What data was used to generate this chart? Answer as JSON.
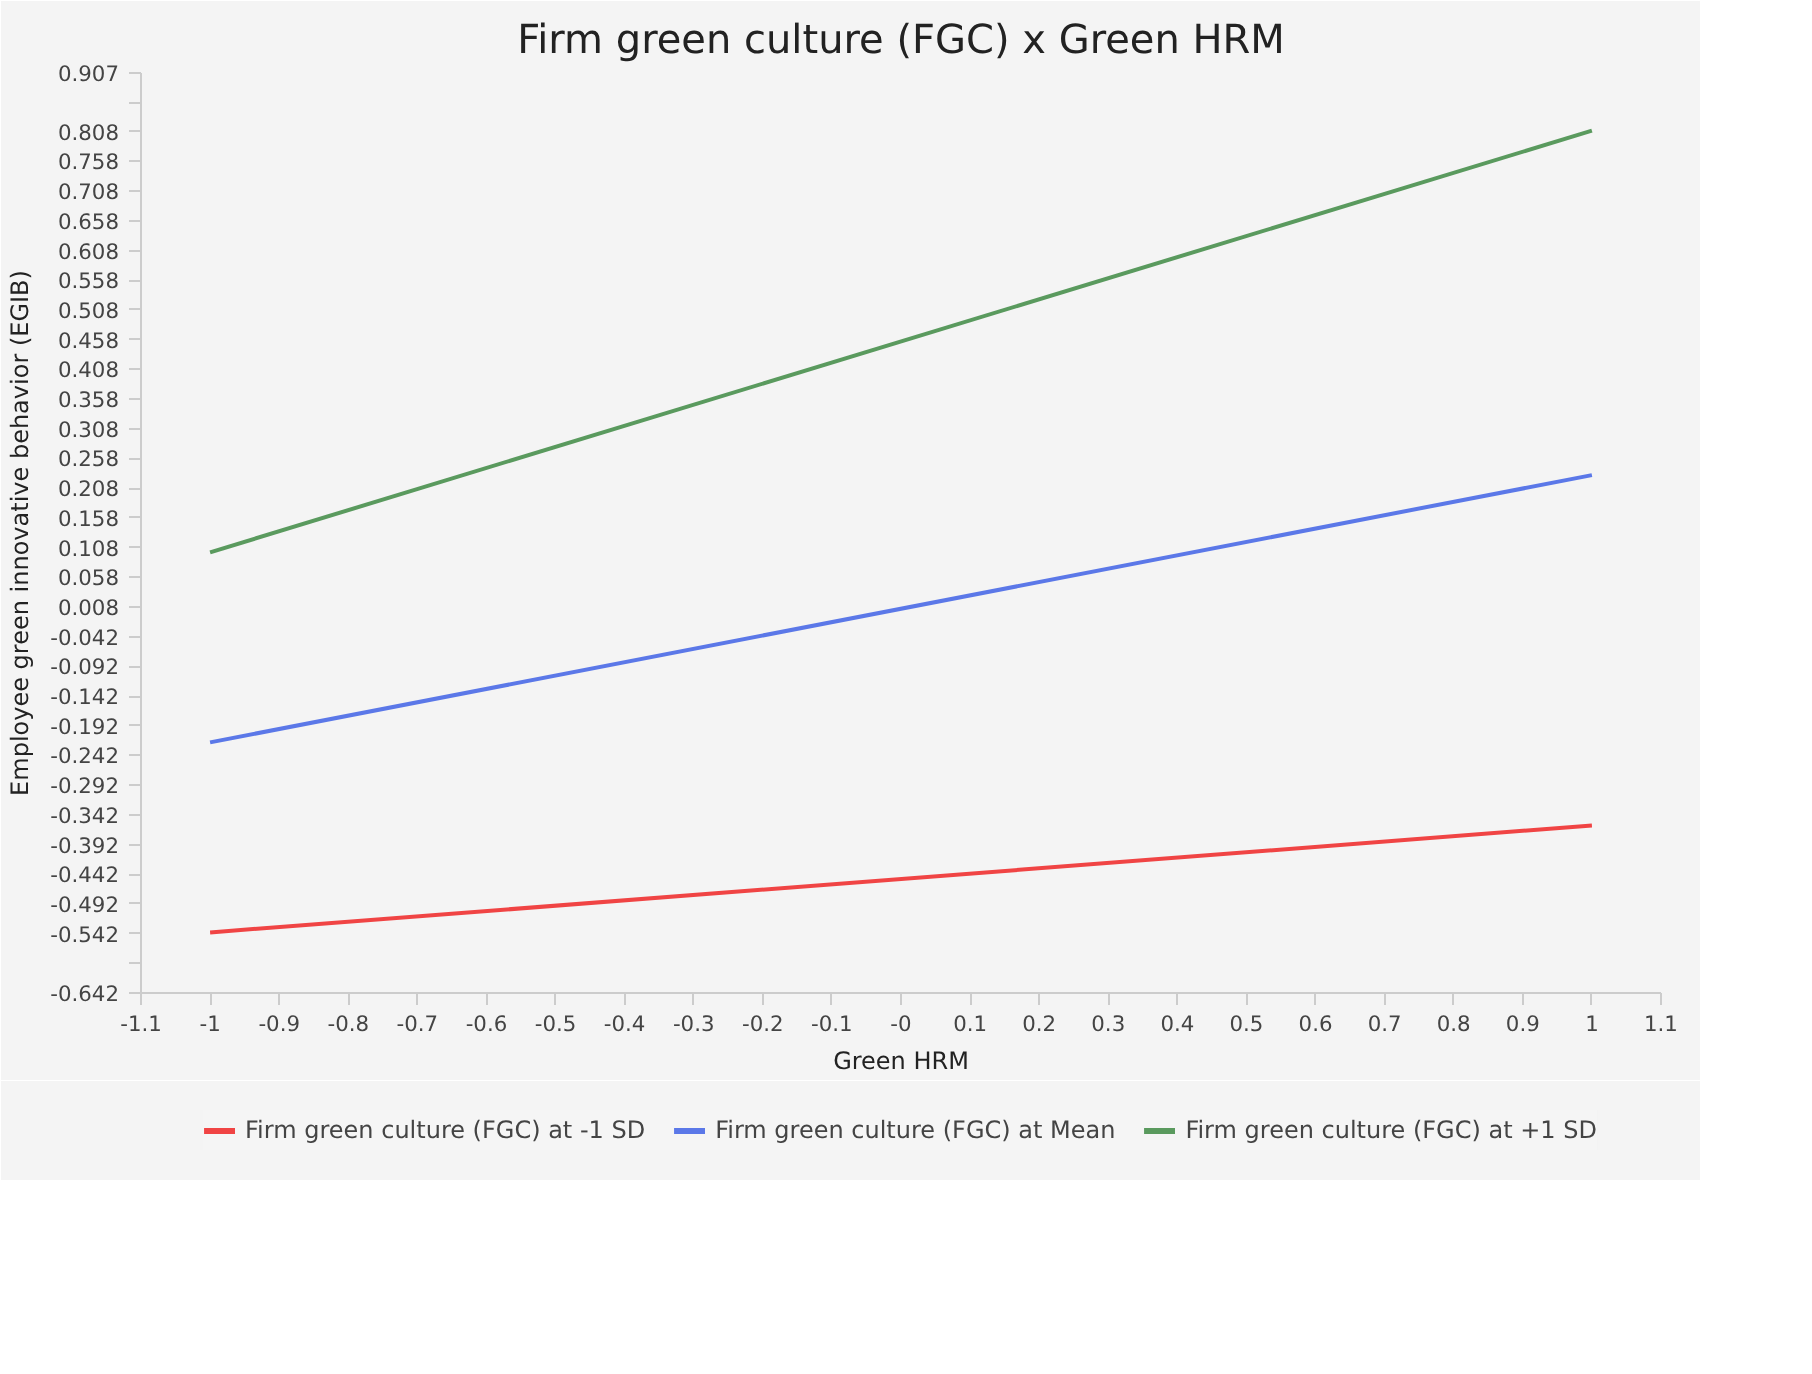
{
  "chart_data": {
    "type": "line",
    "title": "Firm green culture (FGC) x Green HRM",
    "xlabel": "Green HRM",
    "ylabel": "Employee green innovative behavior (EGIB)",
    "x": [
      -1,
      1
    ],
    "series": [
      {
        "name": "Firm green culture (FGC) at -1 SD",
        "color": "#f04444",
        "values": [
          -0.54,
          -0.36
        ]
      },
      {
        "name": "Firm green culture (FGC) at Mean",
        "color": "#5b78e8",
        "values": [
          -0.22,
          0.23
        ]
      },
      {
        "name": "Firm green culture (FGC) at +1 SD",
        "color": "#5a9a5e",
        "values": [
          0.1,
          0.81
        ]
      }
    ],
    "xlim": [
      -1.1,
      1.1
    ],
    "xticks": [
      -1.1,
      -1,
      -0.9,
      -0.8,
      -0.7,
      -0.6,
      -0.5,
      -0.4,
      -0.3,
      -0.2,
      -0.1,
      {
        "value": 0,
        "label": "-0"
      },
      0.1,
      0.2,
      0.3,
      0.4,
      0.5,
      0.6,
      0.7,
      0.8,
      0.9,
      1,
      1.1
    ],
    "ylim": [
      -0.642,
      0.907
    ],
    "yticks": [
      0.907,
      {
        "value": 0.858,
        "label": null
      },
      0.808,
      0.758,
      0.708,
      0.658,
      0.608,
      0.558,
      0.508,
      0.458,
      0.408,
      0.358,
      0.308,
      0.258,
      0.208,
      0.158,
      0.108,
      0.058,
      0.008,
      -0.042,
      -0.092,
      -0.142,
      -0.192,
      -0.242,
      -0.292,
      -0.342,
      -0.392,
      -0.442,
      -0.492,
      -0.542,
      {
        "value": -0.592,
        "label": null
      },
      -0.642
    ],
    "grid": false,
    "legend": "bottom",
    "marker": "none",
    "line_style": "solid"
  }
}
